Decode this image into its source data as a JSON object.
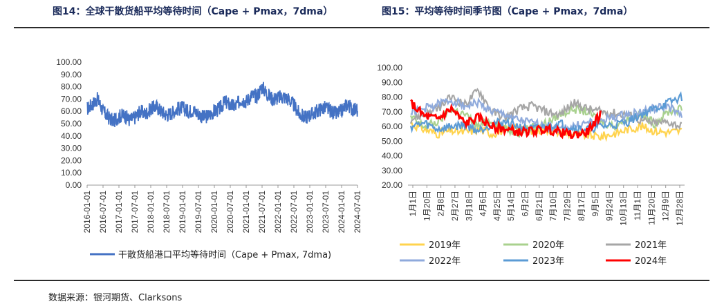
{
  "header": {
    "fig14_title": "图14：全球干散货船平均等待时间（Cape + Pmax，7dma）",
    "fig15_title": "图15：平均等待时间季节图（Cape + Pmax，7dma）"
  },
  "footer": {
    "source": "数据来源：银河期货、Clarksons"
  },
  "chart_data": [
    {
      "type": "line",
      "title": "",
      "yticks": [
        "100.00",
        "90.00",
        "80.00",
        "70.00",
        "60.00",
        "50.00",
        "40.00",
        "30.00",
        "20.00",
        "10.00",
        "0.00"
      ],
      "ylim": [
        0,
        100
      ],
      "xticks": [
        "2016-01-01",
        "2016-07-01",
        "2017-01-01",
        "2017-07-01",
        "2018-01-01",
        "2018-07-01",
        "2019-01-01",
        "2019-07-01",
        "2020-01-01",
        "2020-07-01",
        "2021-01-01",
        "2021-07-01",
        "2022-01-01",
        "2022-07-01",
        "2023-01-01",
        "2023-07-01",
        "2024-01-01",
        "2024-07-01"
      ],
      "legend": "bottom",
      "series": [
        {
          "name": "干散货船港口平均等待时间（Cape + Pmax, 7dma)",
          "color": "#4472C4",
          "x": [
            "2016-01",
            "2016-03",
            "2016-05",
            "2016-07",
            "2016-09",
            "2016-11",
            "2017-01",
            "2017-03",
            "2017-05",
            "2017-07",
            "2017-09",
            "2017-11",
            "2018-01",
            "2018-03",
            "2018-05",
            "2018-07",
            "2018-09",
            "2018-11",
            "2019-01",
            "2019-03",
            "2019-05",
            "2019-07",
            "2019-09",
            "2019-11",
            "2020-01",
            "2020-03",
            "2020-05",
            "2020-07",
            "2020-09",
            "2020-11",
            "2021-01",
            "2021-03",
            "2021-05",
            "2021-07",
            "2021-09",
            "2021-11",
            "2022-01",
            "2022-03",
            "2022-05",
            "2022-07",
            "2022-09",
            "2022-11",
            "2023-01",
            "2023-03",
            "2023-05",
            "2023-07",
            "2023-09",
            "2023-11",
            "2024-01",
            "2024-03",
            "2024-05",
            "2024-07"
          ],
          "values": [
            62,
            66,
            70,
            60,
            55,
            52,
            56,
            57,
            53,
            55,
            60,
            58,
            62,
            64,
            60,
            57,
            59,
            62,
            63,
            60,
            61,
            58,
            55,
            57,
            60,
            62,
            68,
            65,
            64,
            70,
            68,
            73,
            72,
            80,
            74,
            70,
            71,
            72,
            70,
            65,
            58,
            55,
            57,
            59,
            62,
            63,
            60,
            58,
            60,
            66,
            62,
            61
          ]
        }
      ]
    },
    {
      "type": "line",
      "title": "",
      "yticks": [
        "100.00",
        "90.00",
        "80.00",
        "70.00",
        "60.00",
        "50.00",
        "40.00",
        "30.00",
        "20.00"
      ],
      "ylim": [
        20,
        100
      ],
      "xticks": [
        "1月1日",
        "1月20日",
        "2月8日",
        "2月27日",
        "3月18日",
        "4月6日",
        "4月25日",
        "5月14日",
        "6月2日",
        "6月21日",
        "7月10日",
        "7月29日",
        "8月17日",
        "9月5日",
        "9月24日",
        "10月13日",
        "11月1日",
        "11月20日",
        "12月9日",
        "12月28日"
      ],
      "legend": "bottom",
      "series": [
        {
          "name": "2019年",
          "color": "#FFD34D",
          "values": [
            62,
            58,
            55,
            57,
            56,
            58,
            55,
            58,
            60,
            57,
            58,
            56,
            55,
            54,
            53,
            55,
            58,
            60,
            57,
            56,
            57
          ]
        },
        {
          "name": "2020年",
          "color": "#A9D18E",
          "values": [
            66,
            60,
            63,
            72,
            68,
            60,
            64,
            58,
            56,
            60,
            62,
            68,
            72,
            70,
            64,
            60,
            66,
            68,
            62,
            70,
            72
          ]
        },
        {
          "name": "2021年",
          "color": "#A6A6A6",
          "values": [
            65,
            68,
            72,
            80,
            75,
            85,
            70,
            66,
            72,
            74,
            70,
            68,
            76,
            72,
            70,
            69,
            68,
            64,
            62,
            63,
            60
          ]
        },
        {
          "name": "2022年",
          "color": "#8FAADC",
          "values": [
            70,
            72,
            75,
            78,
            74,
            76,
            70,
            68,
            64,
            62,
            60,
            58,
            60,
            62,
            64,
            66,
            68,
            70,
            72,
            74,
            66
          ]
        },
        {
          "name": "2023年",
          "color": "#5B9BD5",
          "values": [
            60,
            62,
            58,
            60,
            61,
            57,
            62,
            63,
            60,
            58,
            60,
            62,
            59,
            58,
            60,
            61,
            63,
            68,
            72,
            76,
            80
          ]
        },
        {
          "name": "2024年",
          "color": "#FF0000",
          "values": [
            76,
            67,
            65,
            72,
            62,
            66,
            60,
            58,
            56,
            57,
            58,
            56,
            54,
            56,
            68
          ]
        }
      ]
    }
  ]
}
